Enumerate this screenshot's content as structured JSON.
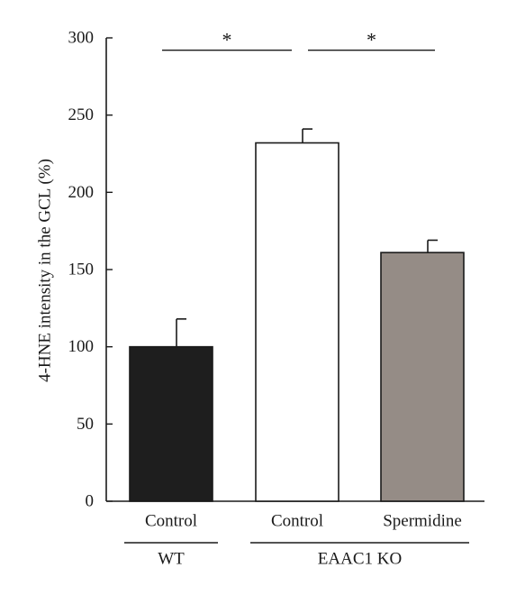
{
  "chart_data": {
    "type": "bar",
    "ylabel": "4-HNE intensity in the GCL (%)",
    "ylim": [
      0,
      300
    ],
    "yticks": [
      0,
      50,
      100,
      150,
      200,
      250,
      300
    ],
    "categories": [
      "Control",
      "Control",
      "Spermidine"
    ],
    "groups": [
      {
        "label": "WT",
        "categories": [
          0
        ]
      },
      {
        "label": "EAAC1 KO",
        "categories": [
          1,
          2
        ]
      }
    ],
    "values": [
      100,
      232,
      161
    ],
    "errors": [
      18,
      9,
      8
    ],
    "bar_colors": [
      "#1e1e1e",
      "#ffffff",
      "#958c86"
    ],
    "significance": [
      {
        "from": 0,
        "to": 1,
        "label": "*",
        "y": 292
      },
      {
        "from": 1,
        "to": 2,
        "label": "*",
        "y": 292
      }
    ],
    "grid": false,
    "legend": "none"
  }
}
